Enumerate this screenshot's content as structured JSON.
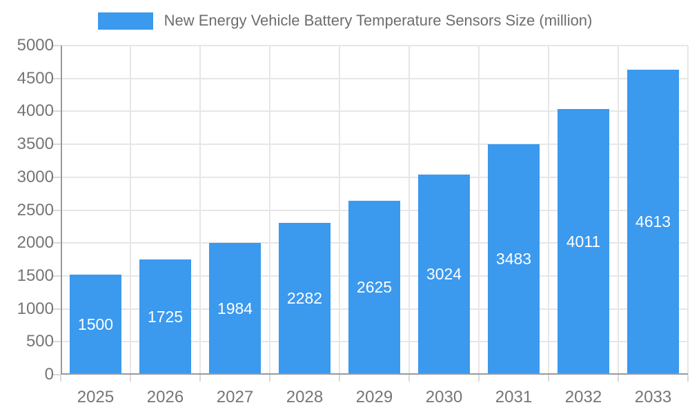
{
  "chart_data": {
    "type": "bar",
    "title": "New Energy Vehicle Battery Temperature Sensors Size (million)",
    "categories": [
      "2025",
      "2026",
      "2027",
      "2028",
      "2029",
      "2030",
      "2031",
      "2032",
      "2033"
    ],
    "values": [
      1500,
      1725,
      1984,
      2282,
      2625,
      3024,
      3483,
      4011,
      4613
    ],
    "xlabel": "",
    "ylabel": "",
    "ylim": [
      0,
      5000
    ],
    "ytick_step": 500,
    "yticks": [
      0,
      500,
      1000,
      1500,
      2000,
      2500,
      3000,
      3500,
      4000,
      4500,
      5000
    ],
    "grid": true,
    "legend_position": "top",
    "value_labels": "inside-center",
    "colors": {
      "bar": "#3b99ee",
      "value_label_text": "#ffffff",
      "gridline": "#e6e6e6",
      "axis_line": "#999999",
      "tick": "#d9d9d9",
      "axis_text": "#757575",
      "legend_text": "#6d6d6d",
      "background": "#ffffff"
    }
  }
}
